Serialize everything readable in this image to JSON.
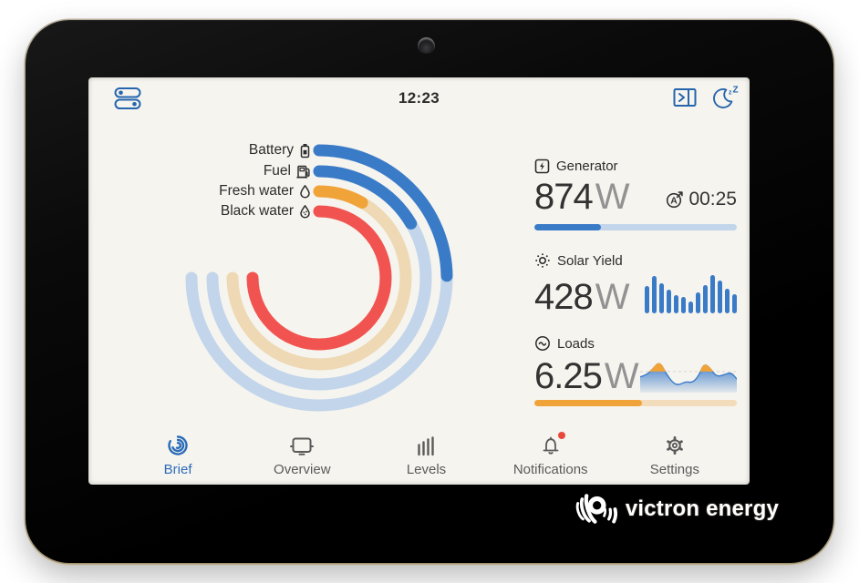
{
  "window": {
    "time": "12:23",
    "brand": "victron energy"
  },
  "colors": {
    "accent_blue": "#3a7bc8",
    "track_blue": "#c2d5ea",
    "accent_orange": "#f0a339",
    "track_orange": "#f3dcbb",
    "accent_red": "#f15450",
    "screen_bg": "#f6f4ef",
    "nav_active": "#2b6cb8",
    "notification_dot": "#e8493c"
  },
  "stats": {
    "generator": {
      "label": "Generator",
      "value": "874",
      "unit": "W",
      "runtime": "00:25",
      "progress_percent": 33
    },
    "solar": {
      "label": "Solar Yield",
      "value": "428",
      "unit": "W"
    },
    "loads": {
      "label": "Loads",
      "value": "6.25",
      "unit": "W",
      "progress_percent": 53
    }
  },
  "chart_data": [
    {
      "type": "ring-gauge",
      "name": "tank-and-battery-rings",
      "sweep_deg": 270,
      "rings": [
        {
          "label": "Battery",
          "icon": "battery-icon",
          "percent": 33,
          "color": "#3a7bc8",
          "track": "#c2d5ea",
          "radius": 140
        },
        {
          "label": "Fuel",
          "icon": "fuel-pump-icon",
          "percent": 22,
          "color": "#3a7bc8",
          "track": "#c2d5ea",
          "radius": 117
        },
        {
          "label": "Fresh water",
          "icon": "water-drop-icon",
          "percent": 11,
          "color": "#f0a339",
          "track": "#eed9b4",
          "radius": 95
        },
        {
          "label": "Black water",
          "icon": "black-water-drop-icon",
          "percent": 100,
          "color": "#f15450",
          "track": "#f5cdc6",
          "radius": 73
        }
      ]
    },
    {
      "type": "bar",
      "name": "solar-yield-bars",
      "ymax": 100,
      "color": "#3a7bc8",
      "values": [
        72,
        97,
        78,
        62,
        47,
        42,
        30,
        55,
        75,
        100,
        85,
        65,
        50
      ]
    },
    {
      "type": "area",
      "name": "loads-history",
      "threshold": 62,
      "color_below": "#3a7bc8",
      "color_above": "#f0a339",
      "x": [
        0,
        6,
        13,
        20,
        27,
        34,
        40,
        47,
        54,
        60,
        66,
        72,
        79,
        87,
        94,
        100
      ],
      "y": [
        45,
        50,
        70,
        95,
        55,
        25,
        18,
        30,
        26,
        45,
        88,
        75,
        45,
        52,
        60,
        38
      ]
    }
  ],
  "nav": {
    "items": [
      {
        "label": "Brief",
        "icon": "brief-rings-icon",
        "active": true,
        "badge": false
      },
      {
        "label": "Overview",
        "icon": "overview-icon",
        "active": false,
        "badge": false
      },
      {
        "label": "Levels",
        "icon": "levels-icon",
        "active": false,
        "badge": false
      },
      {
        "label": "Notifications",
        "icon": "bell-icon",
        "active": false,
        "badge": true
      },
      {
        "label": "Settings",
        "icon": "gear-icon",
        "active": false,
        "badge": false
      }
    ]
  }
}
